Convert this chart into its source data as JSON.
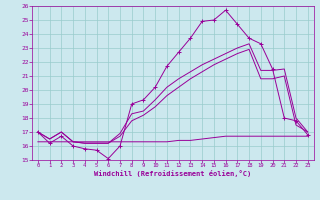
{
  "xlabel": "Windchill (Refroidissement éolien,°C)",
  "ylabel": "",
  "xlim": [
    -0.5,
    23.5
  ],
  "ylim": [
    15,
    26
  ],
  "xticks": [
    0,
    1,
    2,
    3,
    4,
    5,
    6,
    7,
    8,
    9,
    10,
    11,
    12,
    13,
    14,
    15,
    16,
    17,
    18,
    19,
    20,
    21,
    22,
    23
  ],
  "yticks": [
    15,
    16,
    17,
    18,
    19,
    20,
    21,
    22,
    23,
    24,
    25,
    26
  ],
  "bg_color": "#cce8ee",
  "line_color": "#990099",
  "grid_color": "#99cccc",
  "line1_x": [
    0,
    1,
    2,
    3,
    4,
    5,
    6,
    7,
    8,
    9,
    10,
    11,
    12,
    13,
    14,
    15,
    16,
    17,
    18,
    19,
    20,
    21,
    22,
    23
  ],
  "line1_y": [
    17.0,
    16.2,
    16.7,
    16.0,
    15.8,
    15.7,
    15.1,
    16.0,
    19.0,
    19.3,
    20.2,
    21.7,
    22.7,
    23.7,
    24.9,
    25.0,
    25.7,
    24.7,
    23.7,
    23.3,
    21.5,
    18.0,
    17.8,
    16.8
  ],
  "line2_x": [
    0,
    1,
    2,
    3,
    4,
    5,
    6,
    7,
    8,
    9,
    10,
    11,
    12,
    13,
    14,
    15,
    16,
    17,
    18,
    19,
    20,
    21,
    22,
    23
  ],
  "line2_y": [
    17.0,
    16.5,
    17.0,
    16.3,
    16.2,
    16.2,
    16.2,
    16.9,
    18.3,
    18.5,
    19.3,
    20.2,
    20.8,
    21.3,
    21.8,
    22.2,
    22.6,
    23.0,
    23.3,
    21.4,
    21.4,
    21.5,
    18.0,
    17.0
  ],
  "line3_x": [
    0,
    1,
    2,
    3,
    4,
    5,
    6,
    7,
    8,
    9,
    10,
    11,
    12,
    13,
    14,
    15,
    16,
    17,
    18,
    19,
    20,
    21,
    22,
    23
  ],
  "line3_y": [
    17.0,
    16.5,
    17.0,
    16.3,
    16.2,
    16.2,
    16.2,
    16.7,
    17.8,
    18.2,
    18.8,
    19.6,
    20.2,
    20.8,
    21.3,
    21.8,
    22.2,
    22.6,
    22.9,
    20.8,
    20.8,
    21.0,
    17.5,
    17.0
  ],
  "line4_x": [
    0,
    1,
    2,
    3,
    4,
    5,
    6,
    7,
    8,
    9,
    10,
    11,
    12,
    13,
    14,
    15,
    16,
    17,
    18,
    19,
    20,
    21,
    22,
    23
  ],
  "line4_y": [
    16.3,
    16.3,
    16.3,
    16.3,
    16.3,
    16.3,
    16.3,
    16.3,
    16.3,
    16.3,
    16.3,
    16.3,
    16.4,
    16.4,
    16.5,
    16.6,
    16.7,
    16.7,
    16.7,
    16.7,
    16.7,
    16.7,
    16.7,
    16.7
  ]
}
